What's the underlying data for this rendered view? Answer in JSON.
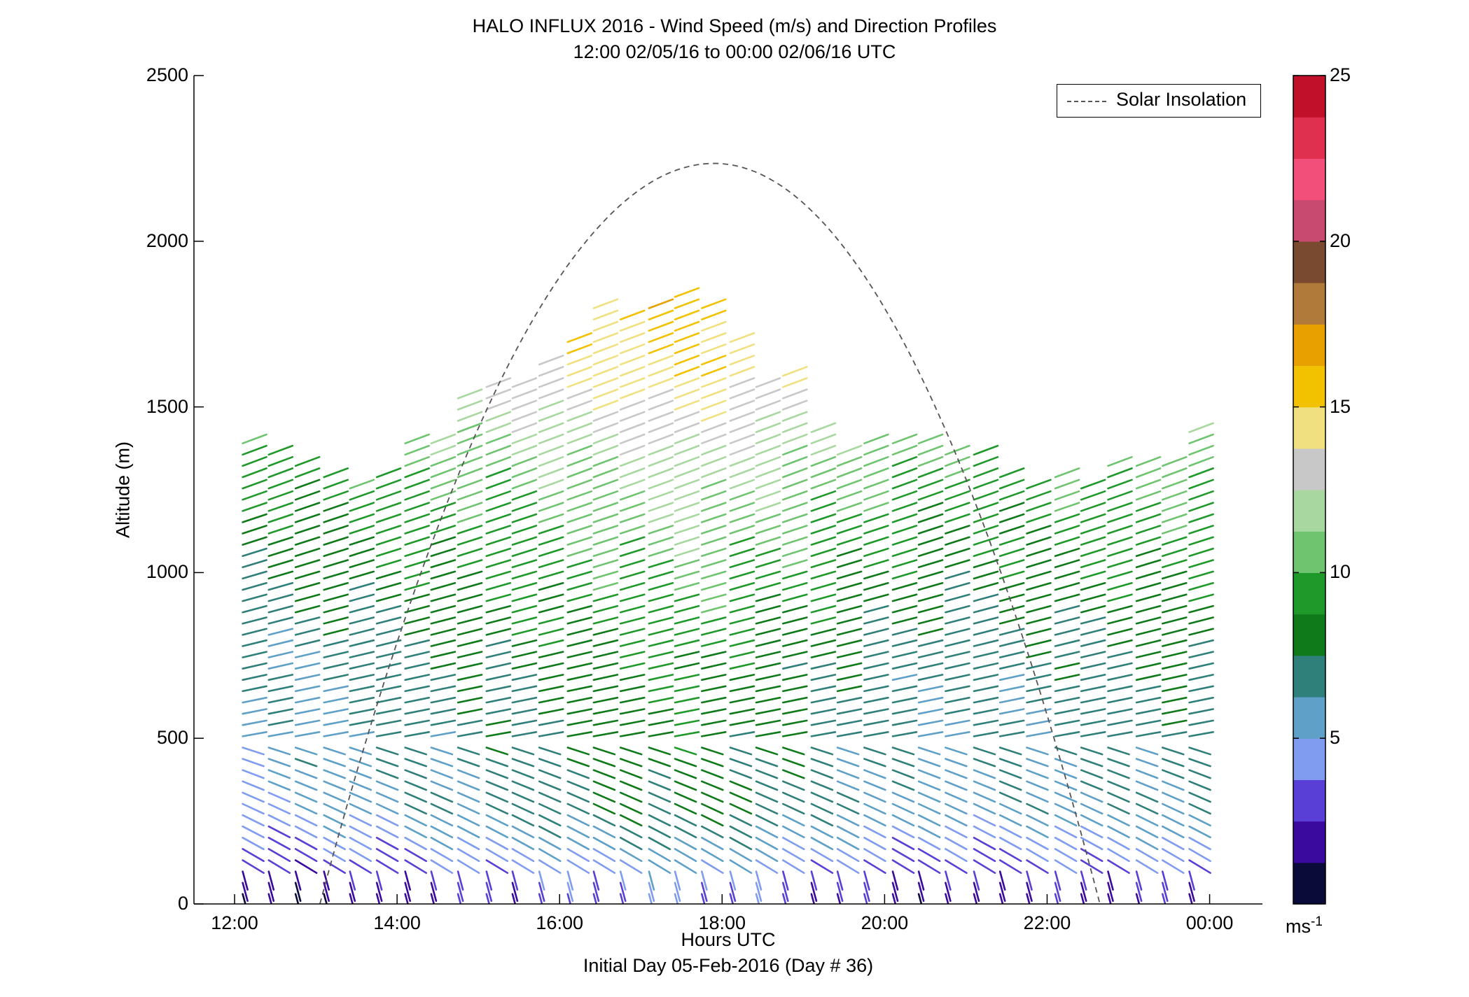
{
  "chart_data": {
    "type": "wind barb profile (time-height)",
    "title": "HALO INFLUX 2016 - Wind Speed (m/s) and Direction Profiles",
    "subtitle": "12:00 02/05/16 to 00:00 02/06/16  UTC",
    "xlabel": "Hours UTC",
    "footer": "Initial Day 05-Feb-2016 (Day # 36)",
    "ylabel": "Altitude (m)",
    "x_range_hours": [
      11.5,
      24.65
    ],
    "y_range_m": [
      0,
      2500
    ],
    "x_ticks": [
      {
        "hour": 12,
        "label": "12:00"
      },
      {
        "hour": 14,
        "label": "14:00"
      },
      {
        "hour": 16,
        "label": "16:00"
      },
      {
        "hour": 18,
        "label": "18:00"
      },
      {
        "hour": 20,
        "label": "20:00"
      },
      {
        "hour": 22,
        "label": "22:00"
      },
      {
        "hour": 24,
        "label": "00:00"
      }
    ],
    "y_ticks": [
      {
        "value": 0,
        "label": "0"
      },
      {
        "value": 500,
        "label": "500"
      },
      {
        "value": 1000,
        "label": "1000"
      },
      {
        "value": 1500,
        "label": "1500"
      },
      {
        "value": 2000,
        "label": "2000"
      },
      {
        "value": 2500,
        "label": "2500"
      }
    ],
    "colorbar": {
      "range": [
        0,
        25
      ],
      "unit_label": "ms",
      "unit_exponent": "-1",
      "ticks": [
        {
          "value": 5,
          "label": "5"
        },
        {
          "value": 10,
          "label": "10"
        },
        {
          "value": 15,
          "label": "15"
        },
        {
          "value": 20,
          "label": "20"
        },
        {
          "value": 25,
          "label": "25"
        }
      ],
      "colors": [
        "#0b0b3a",
        "#3a0a9e",
        "#5a3fd6",
        "#7f9cf0",
        "#5ea0c8",
        "#2f7f7a",
        "#0f7a1a",
        "#1f9a2a",
        "#6fc46f",
        "#a8d8a0",
        "#c8c8c8",
        "#f0e080",
        "#f2c200",
        "#e8a000",
        "#b07a3a",
        "#7a4a30",
        "#c84a70",
        "#f2507a",
        "#e03050",
        "#c0102a"
      ]
    },
    "legend": [
      {
        "name": "Solar Insolation",
        "style": "dashed",
        "color": "#555555"
      }
    ],
    "solar_insolation_curve": {
      "start_hour": 13.05,
      "end_hour": 22.65,
      "peak_hour": 17.9,
      "peak_altitude_m": 2235,
      "baseline_m": 0
    },
    "profiles": {
      "time_hours": [
        12.1,
        12.42,
        12.75,
        13.1,
        13.42,
        13.75,
        14.1,
        14.42,
        14.75,
        15.1,
        15.42,
        15.75,
        16.1,
        16.42,
        16.75,
        17.1,
        17.42,
        17.75,
        18.1,
        18.42,
        18.75,
        19.1,
        19.42,
        19.75,
        20.1,
        20.42,
        20.75,
        21.1,
        21.42,
        21.75,
        22.1,
        22.42,
        22.75,
        23.1,
        23.42,
        23.75
      ],
      "top_altitude_m": [
        1410,
        1370,
        1330,
        1290,
        1260,
        1290,
        1410,
        1420,
        1530,
        1560,
        1580,
        1650,
        1720,
        1820,
        1780,
        1810,
        1860,
        1800,
        1700,
        1580,
        1610,
        1440,
        1380,
        1390,
        1400,
        1410,
        1380,
        1370,
        1310,
        1280,
        1290,
        1280,
        1330,
        1350,
        1330,
        1450
      ],
      "vertical_spacing_m": 34,
      "speed_by_altitude_m_s": [
        {
          "altitude_m": 50,
          "speed": 3.5
        },
        {
          "altitude_m": 300,
          "speed": 7.5
        },
        {
          "altitude_m": 700,
          "speed": 8.5
        },
        {
          "altitude_m": 1000,
          "speed": 10.0
        },
        {
          "altitude_m": 1300,
          "speed": 11.5
        },
        {
          "altitude_m": 1600,
          "speed": 14.5
        },
        {
          "altitude_m": 1800,
          "speed": 15.5
        }
      ],
      "speed_time_adjustment_m_s": [
        {
          "hour": 12,
          "adjust": -2.5
        },
        {
          "hour": 15,
          "adjust": -1.0
        },
        {
          "hour": 17.5,
          "adjust": 0.5
        },
        {
          "hour": 20.5,
          "adjust": -2.0
        },
        {
          "hour": 23.5,
          "adjust": -1.0
        }
      ]
    }
  }
}
